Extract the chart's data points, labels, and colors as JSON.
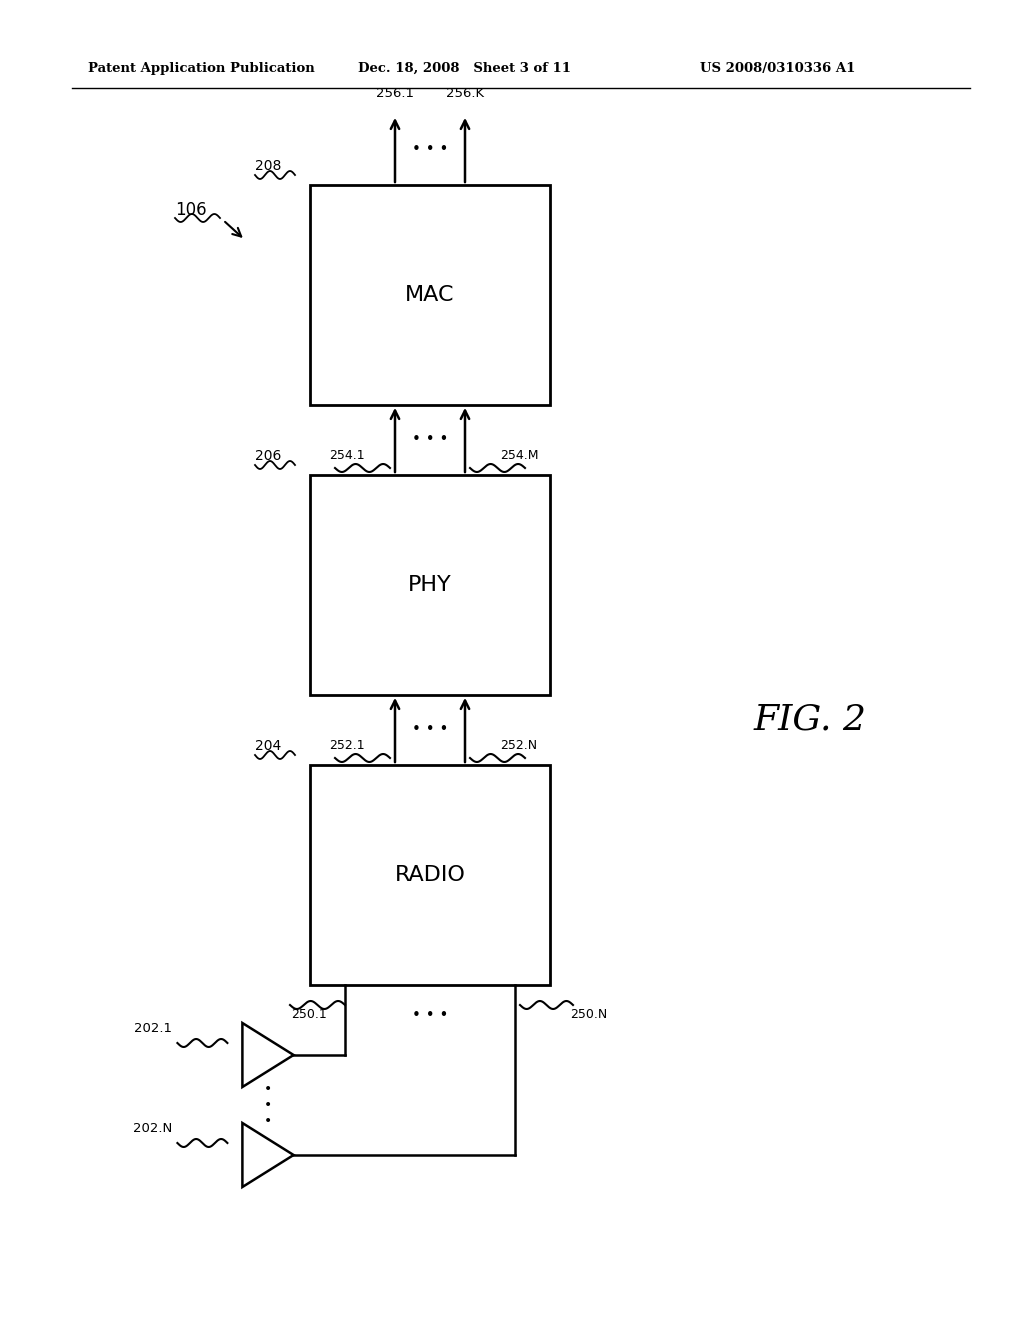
{
  "bg_color": "#ffffff",
  "header_left": "Patent Application Publication",
  "header_mid": "Dec. 18, 2008   Sheet 3 of 11",
  "header_right": "US 2008/0310336 A1",
  "fig_label": "FIG. 2",
  "fig_number": "106",
  "block_radio": {
    "label": "RADIO",
    "ref": "204"
  },
  "block_phy": {
    "label": "PHY",
    "ref": "206"
  },
  "block_mac": {
    "label": "MAC",
    "ref": "208"
  },
  "conn_ant_radio": {
    "label1": "250.1",
    "label2": "250.N"
  },
  "conn_radio_phy": {
    "label1": "252.1",
    "label2": "252.N"
  },
  "conn_phy_mac": {
    "label1": "254.1",
    "label2": "254.M"
  },
  "conn_mac_out": {
    "label1": "256.1",
    "label2": "256.K"
  },
  "ant1_label": "202.1",
  "ant2_label": "202.N"
}
